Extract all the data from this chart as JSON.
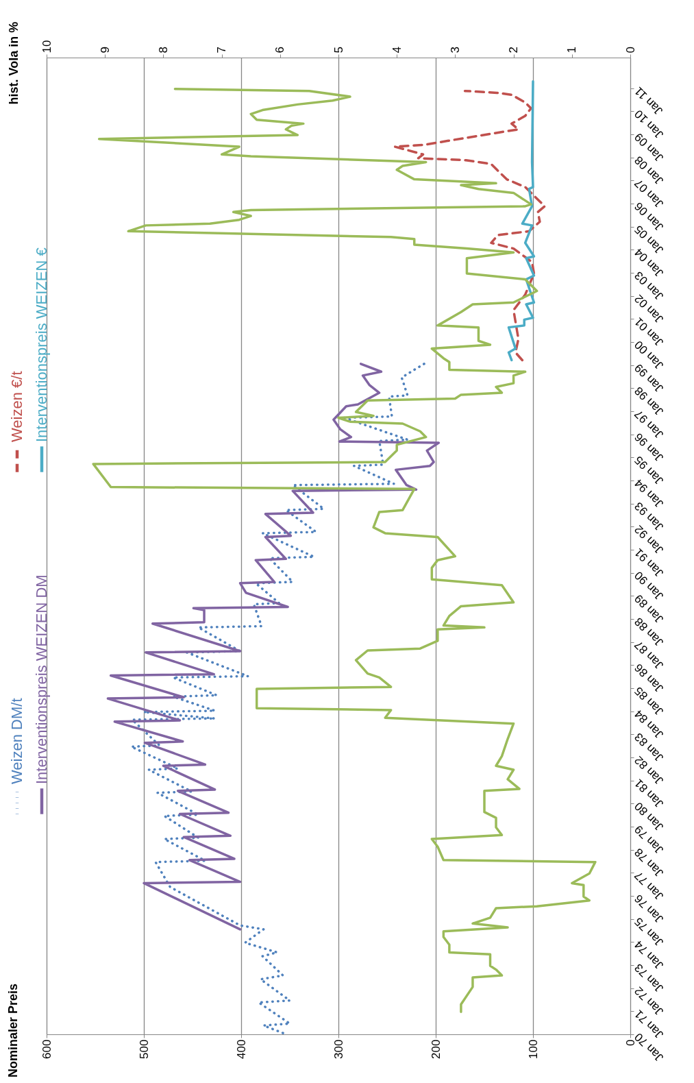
{
  "chart_data": {
    "type": "line",
    "orientation": "horizontal",
    "annotations": [
      "Nominaler Preis"
    ],
    "x2label": "hist. Vola in %",
    "ylim": [
      "1970-01",
      "2012-05"
    ],
    "yticks": [
      {
        "value": "1970-01",
        "label": "Jan 70"
      },
      {
        "value": "1971-01",
        "label": "Jan 71"
      },
      {
        "value": "1972-01",
        "label": "Jan 72"
      },
      {
        "value": "1973-01",
        "label": "Jan 73"
      },
      {
        "value": "1974-01",
        "label": "Jan 74"
      },
      {
        "value": "1975-01",
        "label": "Jan 75"
      },
      {
        "value": "1976-01",
        "label": "Jan 76"
      },
      {
        "value": "1977-01",
        "label": "Jan 77"
      },
      {
        "value": "1978-01",
        "label": "Jan 78"
      },
      {
        "value": "1979-01",
        "label": "Jan 79"
      },
      {
        "value": "1980-01",
        "label": "Jan 80"
      },
      {
        "value": "1981-01",
        "label": "Jan 81"
      },
      {
        "value": "1982-01",
        "label": "Jan 82"
      },
      {
        "value": "1983-01",
        "label": "Jan 83"
      },
      {
        "value": "1984-01",
        "label": "Jan 84"
      },
      {
        "value": "1985-01",
        "label": "Jan 85"
      },
      {
        "value": "1986-01",
        "label": "Jan 86"
      },
      {
        "value": "1987-01",
        "label": "Jan 87"
      },
      {
        "value": "1988-01",
        "label": "Jan 88"
      },
      {
        "value": "1989-01",
        "label": "Jan 89"
      },
      {
        "value": "1990-01",
        "label": "Jan 90"
      },
      {
        "value": "1991-01",
        "label": "Jan 91"
      },
      {
        "value": "1992-01",
        "label": "Jan 92"
      },
      {
        "value": "1993-01",
        "label": "Jan 93"
      },
      {
        "value": "1994-01",
        "label": "Jan 94"
      },
      {
        "value": "1995-01",
        "label": "Jan 95"
      },
      {
        "value": "1996-01",
        "label": "Jan 96"
      },
      {
        "value": "1997-01",
        "label": "Jan 97"
      },
      {
        "value": "1998-01",
        "label": "Jan 98"
      },
      {
        "value": "1999-01",
        "label": "Jan 99"
      },
      {
        "value": "2000-01",
        "label": "Jan 00"
      },
      {
        "value": "2001-01",
        "label": "Jan 01"
      },
      {
        "value": "2002-01",
        "label": "Jan 02"
      },
      {
        "value": "2003-01",
        "label": "Jan 03"
      },
      {
        "value": "2004-01",
        "label": "Jan 04"
      },
      {
        "value": "2005-01",
        "label": "Jan 05"
      },
      {
        "value": "2006-01",
        "label": "Jan 06"
      },
      {
        "value": "2007-01",
        "label": "Jan 07"
      },
      {
        "value": "2008-01",
        "label": "Jan 08"
      },
      {
        "value": "2009-01",
        "label": "Jan 09"
      },
      {
        "value": "2010-01",
        "label": "Jan 10"
      },
      {
        "value": "2011-01",
        "label": "Jan 11"
      }
    ],
    "xlim": [
      600,
      0
    ],
    "xticks": [
      0,
      100,
      200,
      300,
      400,
      500,
      600
    ],
    "x2lim": [
      10,
      0
    ],
    "x2ticks": [
      0,
      1,
      2,
      3,
      4,
      5,
      6,
      7,
      8,
      9,
      10
    ],
    "grid": "x",
    "legend": "left",
    "series": [
      {
        "name": "Weizen DM/t",
        "color": "#4f81bd",
        "line_style": "dotted",
        "x": [
          "1970-02",
          "1970-06",
          "1970-07",
          "1971-06",
          "1971-07",
          "1972-06",
          "1972-08",
          "1973-06",
          "1973-08",
          "1974-01",
          "1974-08",
          "1974-10",
          "1976-06",
          "1977-07-01",
          "1977-07-21",
          "1978-07-01",
          "1978-07-21",
          "1979-07-01",
          "1979-07-21",
          "1980-07-01",
          "1980-07-21",
          "1981-07-01",
          "1981-07-21",
          "1982-07-01",
          "1982-07-21",
          "1983-09-01",
          "1983-09-21",
          "1984-01-01",
          "1984-01-21",
          "1984-09-01",
          "1984-09-21",
          "1985-07-01",
          "1985-07-21",
          "1986-08-01",
          "1986-08-21",
          "1987-09-01",
          "1987-09-21",
          "1988-09-01",
          "1988-09-21",
          "1989-08-01",
          "1989-08-21",
          "1990-09-01",
          "1990-09-21",
          "1991-10-01",
          "1991-10-21",
          "1992-10-01",
          "1992-10-21",
          "1993-11-01",
          "1993-11-21",
          "1994-09-01",
          "1994-09-21",
          "1995-10-01",
          "1995-10-21",
          "1996-10-01",
          "1996-10-21",
          "1997-09-01",
          "1997-09-21",
          "1998-07",
          "1999-03"
        ],
        "values": [
          357,
          377,
          350,
          382,
          350,
          380,
          357,
          378,
          363,
          396,
          377,
          401,
          473,
          488,
          437,
          479,
          444,
          479,
          444,
          486,
          451,
          495,
          465,
          513,
          484,
          512,
          427,
          500,
          427,
          470,
          425,
          470,
          393,
          456,
          401,
          444,
          379,
          387,
          361,
          385,
          347,
          371,
          325,
          378,
          323,
          354,
          315,
          347,
          243,
          284,
          254,
          258,
          229,
          294,
          245,
          248,
          229,
          235,
          209
        ]
      },
      {
        "name": "Weizen €/t",
        "color": "#c0504d",
        "line_style": "dashed",
        "x": [
          "1999-04",
          "1999-08",
          "2000-03",
          "2001-06",
          "2002-02",
          "2003-01",
          "2003-07",
          "2004-02",
          "2004-05",
          "2004-09",
          "2004-11",
          "2005-04",
          "2005-09",
          "2005-12",
          "2006-10",
          "2007-02",
          "2007-07",
          "2007-10",
          "2007-12",
          "2008-01",
          "2008-03",
          "2008-07",
          "2008-08",
          "2008-10",
          "2009-02",
          "2009-04",
          "2009-07",
          "2009-11",
          "2010-03",
          "2010-06",
          "2010-10",
          "2010-11",
          "2010-12"
        ],
        "values": [
          111,
          118,
          115,
          120,
          108,
          99,
          101,
          120,
          143,
          136,
          104,
          93,
          95,
          88,
          108,
          127,
          137,
          143,
          169,
          218,
          213,
          242,
          211,
          188,
          139,
          115,
          122,
          108,
          102,
          108,
          122,
          137,
          170
        ]
      },
      {
        "name": "Interventionspreis WEIZEN DM",
        "color": "#8064a2",
        "x": [
          "1974-08",
          "1976-08-01",
          "1976-08-21",
          "1977-08-01",
          "1977-08-21",
          "1978-08-01",
          "1978-08-21",
          "1979-08-01",
          "1979-08-21",
          "1980-08-01",
          "1980-08-21",
          "1981-09-01",
          "1981-09-21",
          "1982-09-01",
          "1982-09-21",
          "1983-08-01",
          "1983-08-21",
          "1984-08-01",
          "1984-08-21",
          "1985-08-01",
          "1985-08-21",
          "1986-08-01",
          "1986-08-21",
          "1987-11-01",
          "1987-11-21",
          "1988-06-01",
          "1988-07-01",
          "1988-07-21",
          "1989-03",
          "1989-08-01",
          "1989-08-21",
          "1990-08-01",
          "1990-08-21",
          "1991-08-01",
          "1991-08-21",
          "1992-08-01",
          "1992-08-21",
          "1993-08-01",
          "1993-08-21",
          "1993-11",
          "1994-07",
          "1994-09",
          "1994-11",
          "1995-05",
          "1995-09-01",
          "1995-09-21",
          "1995-12",
          "1996-04",
          "1996-09",
          "1997-04",
          "1997-05",
          "1997-11",
          "1998-03",
          "1998-08",
          "1998-10",
          "1999-02"
        ],
        "values": [
          401,
          500,
          401,
          453,
          407,
          459,
          411,
          463,
          413,
          465,
          427,
          480,
          437,
          499,
          460,
          530,
          463,
          537,
          459,
          534,
          428,
          498,
          401,
          491,
          438,
          438,
          449,
          352,
          395,
          401,
          366,
          385,
          354,
          375,
          349,
          375,
          326,
          347,
          220,
          230,
          241,
          206,
          202,
          209,
          197,
          299,
          287,
          298,
          305,
          292,
          280,
          258,
          268,
          275,
          256,
          277
        ]
      },
      {
        "name": "Interventionspreis WEIZEN €",
        "color": "#4bacc6",
        "x": [
          "1999-04",
          "1999-08",
          "1999-10",
          "2000-09",
          "2000-10",
          "2001-01",
          "2001-02",
          "2001-09",
          "2001-10",
          "2002-10",
          "2002-12",
          "2003-09",
          "2003-10",
          "2004-05",
          "2005-02",
          "2005-03",
          "2005-12",
          "2006-09",
          "2006-10",
          "2007-11",
          "2011-05"
        ],
        "values": [
          122,
          125,
          118,
          125,
          109,
          109,
          100,
          107,
          99,
          107,
          99,
          107,
          99,
          108,
          101,
          111,
          101,
          104,
          100,
          101,
          100
        ]
      },
      {
        "color": "#9bbb59",
        "axis": "x2",
        "x": [
          "1971-01",
          "1971-05",
          "1972-02",
          "1972-07",
          "1972-08",
          "1972-11",
          "1973-01",
          "1973-07",
          "1973-08",
          "1973-12",
          "1974-04",
          "1974-07",
          "1974-09",
          "1974-11",
          "1975-02",
          "1975-07",
          "1975-08",
          "1975-11",
          "1976-01",
          "1976-07",
          "1976-08",
          "1977-01",
          "1977-07",
          "1977-08",
          "1978-03",
          "1978-07",
          "1978-09",
          "1979-01",
          "1979-06",
          "1979-09",
          "1980-08",
          "1980-09",
          "1981-02",
          "1981-07",
          "1981-09",
          "1982-02",
          "1982-11",
          "1983-07",
          "1983-10",
          "1984-02",
          "1984-03",
          "1985-01",
          "1985-02",
          "1985-07",
          "1985-09",
          "1986-04",
          "1986-09",
          "1986-10",
          "1987-02",
          "1987-08",
          "1987-09",
          "1987-10",
          "1988-03",
          "1988-08",
          "1988-10",
          "1989-07",
          "1989-10",
          "1990-04",
          "1990-08",
          "1990-10",
          "1991-08",
          "1991-10",
          "1992-01",
          "1992-09",
          "1992-10",
          "1993-09",
          "1993-10",
          "1994-10",
          "1994-11",
          "1995-05",
          "1995-08",
          "1995-12",
          "1996-03",
          "1996-07",
          "1996-08",
          "1996-10",
          "1996-11",
          "1997-01",
          "1997-07",
          "1997-08",
          "1997-10",
          "1997-11",
          "1998-02",
          "1998-04",
          "1998-08",
          "1998-10",
          "1998-11",
          "1999-03",
          "1999-05",
          "1999-10",
          "1999-12",
          "2000-02",
          "2000-06",
          "2000-09",
          "2000-10",
          "2001-05",
          "2001-09",
          "2001-10",
          "2002-04",
          "2002-10",
          "2003-01",
          "2003-09",
          "2003-12",
          "2004-02",
          "2004-04",
          "2004-07",
          "2004-08",
          "2004-11",
          "2005-02",
          "2005-03",
          "2005-05",
          "2005-07",
          "2005-09",
          "2005-10",
          "2005-12",
          "2006-01",
          "2006-07",
          "2006-09",
          "2006-11",
          "2006-12",
          "2007-02",
          "2007-07",
          "2007-09",
          "2007-11",
          "2008-02",
          "2008-03",
          "2008-07",
          "2008-11",
          "2009-01",
          "2009-04",
          "2009-06",
          "2009-07",
          "2009-09",
          "2009-12",
          "2010-02",
          "2010-05",
          "2010-07",
          "2010-09",
          "2010-12",
          "2011-01"
        ],
        "values": [
          2.9,
          2.9,
          2.7,
          2.7,
          2.2,
          2.3,
          2.4,
          2.4,
          3.1,
          3.1,
          3.2,
          3.2,
          2.1,
          2.7,
          2.4,
          2.3,
          1.6,
          0.7,
          0.8,
          0.8,
          1.0,
          0.7,
          0.6,
          3.2,
          3.3,
          3.4,
          2.2,
          2.3,
          2.3,
          2.5,
          2.5,
          1.9,
          2.1,
          2.0,
          2.3,
          2.2,
          2.1,
          2.0,
          4.2,
          4.1,
          6.4,
          6.4,
          4.1,
          4.3,
          4.5,
          4.7,
          4.5,
          3.6,
          3.3,
          3.3,
          2.5,
          3.2,
          3.1,
          2.9,
          2.0,
          2.2,
          3.4,
          3.4,
          3.3,
          3.0,
          3.3,
          4.2,
          4.4,
          4.3,
          3.9,
          3.7,
          8.9,
          9.2,
          4.2,
          4.0,
          4.0,
          3.5,
          3.6,
          3.9,
          4.8,
          5.0,
          4.4,
          4.7,
          4.5,
          3.0,
          2.9,
          2.2,
          2.3,
          2.0,
          2.0,
          1.8,
          3.1,
          3.1,
          3.2,
          3.4,
          2.4,
          2.6,
          2.6,
          2.6,
          3.3,
          2.9,
          2.7,
          2.0,
          1.6,
          1.8,
          2.8,
          2.8,
          2.0,
          2.8,
          3.7,
          3.7,
          4.1,
          8.6,
          8.3,
          7.2,
          6.7,
          6.5,
          6.8,
          6.5,
          1.8,
          1.7,
          2.0,
          2.6,
          2.9,
          2.3,
          3.7,
          4.0,
          3.9,
          3.5,
          6.5,
          7.0,
          6.7,
          9.1,
          5.7,
          5.9,
          5.8,
          5.6,
          6.4,
          6.5,
          6.3,
          5.7,
          5.1,
          4.8,
          5.5,
          7.8
        ]
      }
    ]
  }
}
